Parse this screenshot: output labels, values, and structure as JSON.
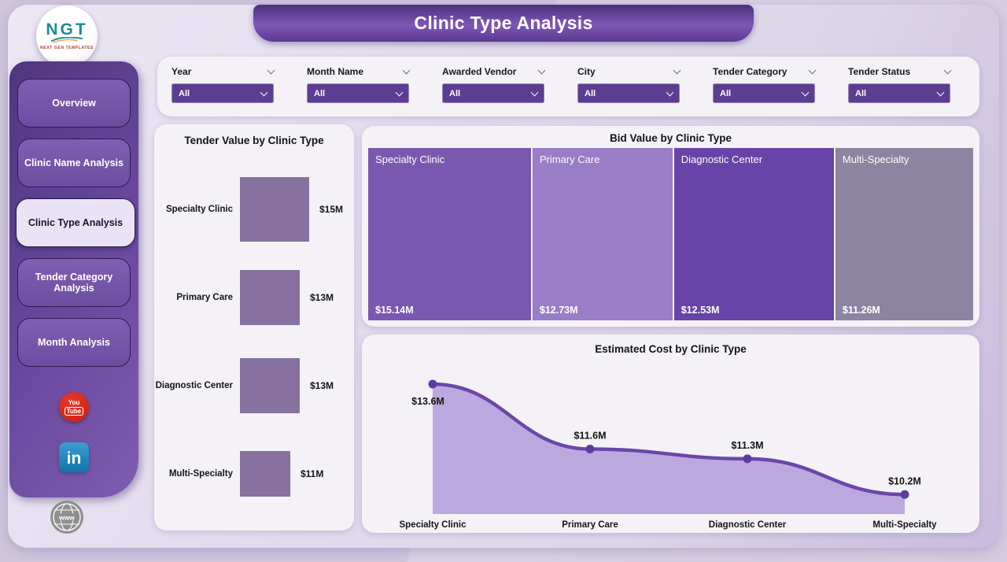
{
  "app": {
    "title": "Clinic Type Analysis"
  },
  "logo": {
    "text": "NGT",
    "caption": "NEXT GEN TEMPLATES"
  },
  "sidebar": {
    "items": [
      {
        "label": "Overview",
        "active": false
      },
      {
        "label": "Clinic Name Analysis",
        "active": false
      },
      {
        "label": "Clinic Type Analysis",
        "active": true
      },
      {
        "label": "Tender Category Analysis",
        "active": false
      },
      {
        "label": "Month Analysis",
        "active": false
      }
    ],
    "social": {
      "youtube_line1": "You",
      "youtube_line2": "Tube",
      "linkedin": "in",
      "globe": "www"
    }
  },
  "filters": {
    "items": [
      {
        "label": "Year",
        "value": "All"
      },
      {
        "label": "Month Name",
        "value": "All"
      },
      {
        "label": "Awarded Vendor",
        "value": "All"
      },
      {
        "label": "City",
        "value": "All"
      },
      {
        "label": "Tender Category",
        "value": "All"
      },
      {
        "label": "Tender Status",
        "value": "All"
      }
    ]
  },
  "chart_data": [
    {
      "type": "bar",
      "title": "Tender Value by Clinic Type",
      "orientation": "category-blocks",
      "categories": [
        "Specialty Clinic",
        "Primary Care",
        "Diagnostic Center",
        "Multi-Specialty"
      ],
      "values": [
        15,
        13,
        13,
        11
      ],
      "labels": [
        "$15M",
        "$13M",
        "$13M",
        "$11M"
      ],
      "bar_color": "#86719f"
    },
    {
      "type": "treemap",
      "title": "Bid Value by Clinic Type",
      "categories": [
        "Specialty Clinic",
        "Primary Care",
        "Diagnostic Center",
        "Multi-Specialty"
      ],
      "values": [
        15.14,
        12.73,
        12.53,
        11.26
      ],
      "labels": [
        "$15.14M",
        "$12.73M",
        "$12.53M",
        "$11.26M"
      ],
      "colors": [
        "#7a58b0",
        "#977ec6",
        "#6843a8",
        "#8d84a1"
      ]
    },
    {
      "type": "area",
      "title": "Estimated Cost by Clinic Type",
      "categories": [
        "Specialty Clinic",
        "Primary Care",
        "Diagnostic Center",
        "Multi-Specialty"
      ],
      "values": [
        13.6,
        11.6,
        11.3,
        10.2
      ],
      "labels": [
        "$13.6M",
        "$11.6M",
        "$11.3M",
        "$10.2M"
      ],
      "ylim": [
        9.6,
        13.6
      ],
      "line_color": "#6b46a8",
      "fill_color": "#b7a3dc",
      "marker_color": "#5f3ba0",
      "grid": false,
      "legend": false
    }
  ]
}
